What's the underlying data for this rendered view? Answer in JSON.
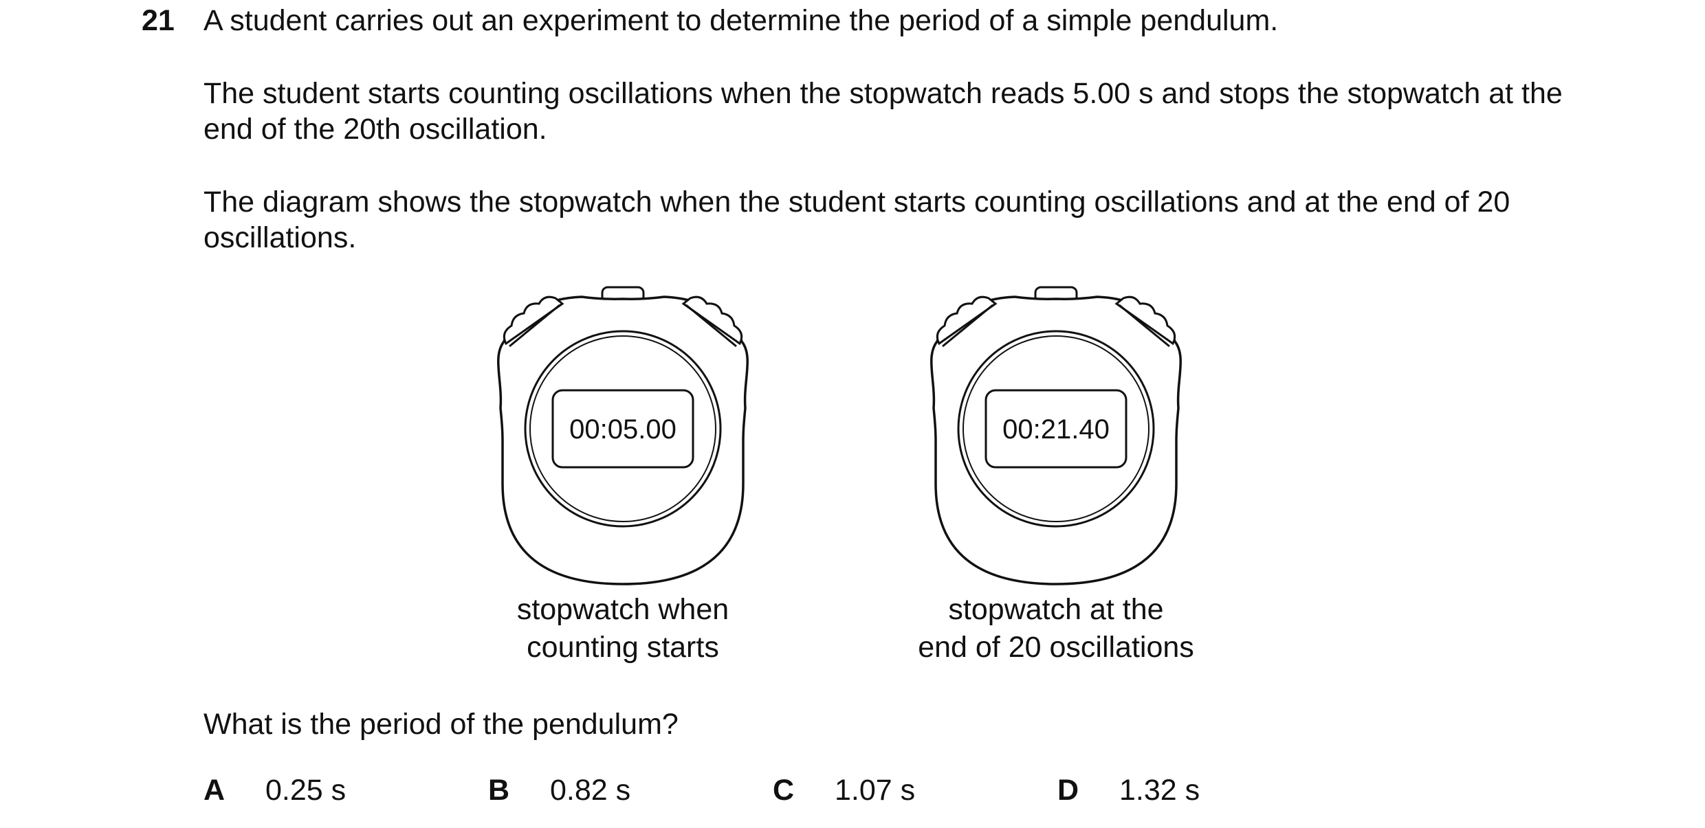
{
  "question": {
    "number": "21",
    "intro": "A student carries out an experiment to determine the period of a simple pendulum.",
    "setup": "The student starts counting oscillations when the stopwatch reads 5.00 s and stops the stopwatch at the end of the 20th oscillation.",
    "diagram_description": "The diagram shows the stopwatch when the student starts counting oscillations and at the end of 20 oscillations.",
    "prompt": "What is the period of the pendulum?"
  },
  "stopwatches": [
    {
      "display": "00:05.00",
      "caption_line1": "stopwatch when",
      "caption_line2": "counting starts"
    },
    {
      "display": "00:21.40",
      "caption_line1": "stopwatch at the",
      "caption_line2": "end of 20 oscillations"
    }
  ],
  "options": [
    {
      "letter": "A",
      "value": "0.25 s"
    },
    {
      "letter": "B",
      "value": "0.82 s"
    },
    {
      "letter": "C",
      "value": "1.07 s"
    },
    {
      "letter": "D",
      "value": "1.32 s"
    }
  ]
}
